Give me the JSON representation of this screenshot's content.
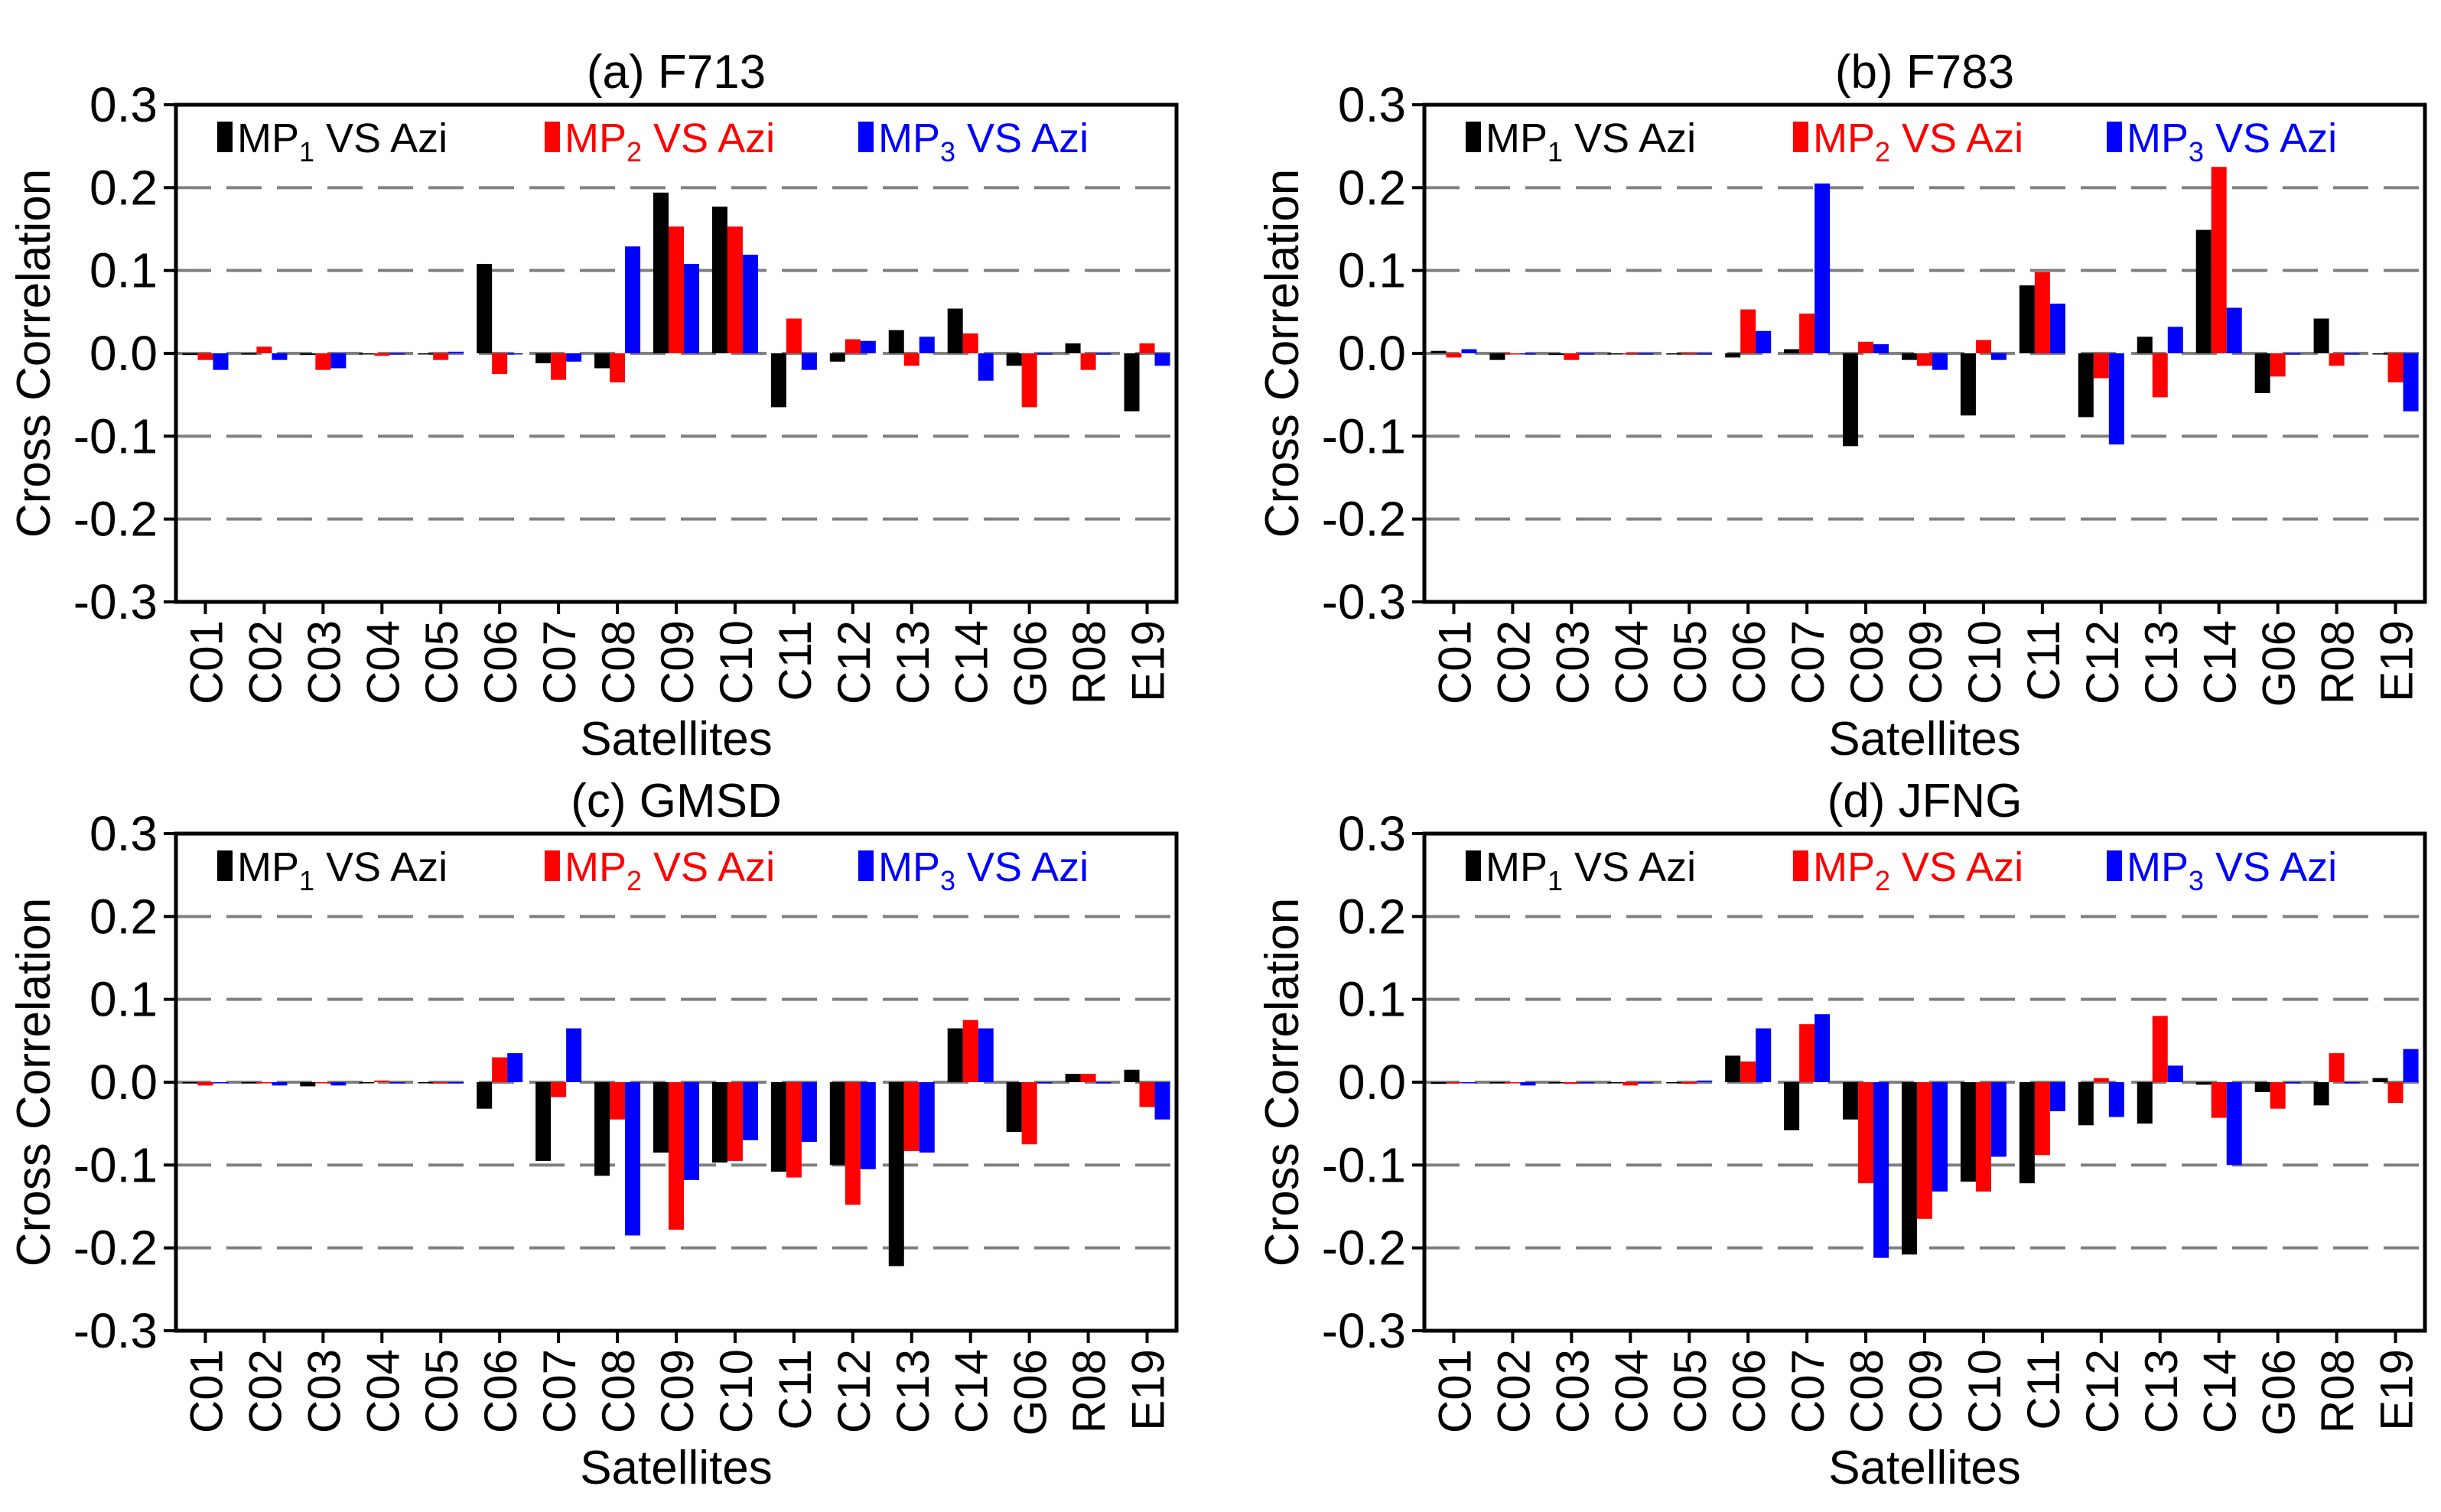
{
  "legend_suffix": "VS Azi",
  "legend_names": [
    "MP",
    "MP",
    "MP"
  ],
  "legend_subscripts": [
    "1",
    "2",
    "3"
  ],
  "colors": {
    "mp1": "#000000",
    "mp2": "#ff0000",
    "mp3": "#0000ff",
    "grid": "#808080"
  },
  "chart_data": [
    {
      "type": "bar",
      "title": "(a) F713",
      "xlabel": "Satellites",
      "ylabel": "Cross Correlation",
      "ylim": [
        -0.3,
        0.3
      ],
      "yticks": [
        "-0.3",
        "-0.2",
        "-0.1",
        "0.0",
        "0.1",
        "0.2",
        "0.3"
      ],
      "grid": "horizontal dashed",
      "legend": "top",
      "categories": [
        "C01",
        "C02",
        "C03",
        "C04",
        "C05",
        "C06",
        "C07",
        "C08",
        "C09",
        "C10",
        "C11",
        "C12",
        "C13",
        "C14",
        "G06",
        "R08",
        "E19"
      ],
      "series": [
        {
          "name": "MP1 VS Azi",
          "values": [
            -0.002,
            0.0,
            -0.002,
            0.0,
            0.0,
            0.108,
            -0.012,
            -0.018,
            0.194,
            0.177,
            -0.065,
            -0.01,
            0.028,
            0.054,
            -0.015,
            0.012,
            -0.07
          ]
        },
        {
          "name": "MP2 VS Azi",
          "values": [
            -0.008,
            0.008,
            -0.02,
            -0.003,
            -0.008,
            -0.025,
            -0.032,
            -0.035,
            0.153,
            0.153,
            0.042,
            0.017,
            -0.015,
            0.024,
            -0.065,
            -0.02,
            0.012
          ]
        },
        {
          "name": "MP3 VS Azi",
          "values": [
            -0.02,
            -0.008,
            -0.018,
            0.0,
            0.002,
            0.0,
            -0.01,
            0.129,
            0.108,
            0.119,
            -0.02,
            0.015,
            0.02,
            -0.033,
            0.0,
            0.0,
            -0.015
          ]
        }
      ]
    },
    {
      "type": "bar",
      "title": "(b) F783",
      "xlabel": "Satellites",
      "ylabel": "Cross Correlation",
      "ylim": [
        -0.3,
        0.3
      ],
      "yticks": [
        "-0.3",
        "-0.2",
        "-0.1",
        "0.0",
        "0.1",
        "0.2",
        "0.3"
      ],
      "grid": "horizontal dashed",
      "legend": "top",
      "categories": [
        "C01",
        "C02",
        "C03",
        "C04",
        "C05",
        "C06",
        "C07",
        "C08",
        "C09",
        "C10",
        "C11",
        "C12",
        "C13",
        "C14",
        "G06",
        "R08",
        "E19"
      ],
      "series": [
        {
          "name": "MP1 VS Azi",
          "values": [
            0.003,
            -0.008,
            -0.002,
            0.0,
            0.0,
            -0.005,
            0.005,
            -0.112,
            -0.008,
            -0.075,
            0.082,
            -0.077,
            0.02,
            0.149,
            -0.048,
            0.042,
            0.0
          ]
        },
        {
          "name": "MP2 VS Azi",
          "values": [
            -0.005,
            0.0,
            -0.008,
            0.0,
            0.0,
            0.053,
            0.048,
            0.014,
            -0.015,
            0.016,
            0.098,
            -0.03,
            -0.053,
            0.225,
            -0.028,
            -0.015,
            -0.035
          ]
        },
        {
          "name": "MP3 VS Azi",
          "values": [
            0.005,
            0.0,
            0.0,
            0.0,
            0.0,
            0.027,
            0.205,
            0.011,
            -0.02,
            -0.008,
            0.06,
            -0.11,
            0.032,
            0.055,
            0.0,
            0.0,
            -0.07
          ]
        }
      ]
    },
    {
      "type": "bar",
      "title": "(c) GMSD",
      "xlabel": "Satellites",
      "ylabel": "Cross Correlation",
      "ylim": [
        -0.3,
        0.3
      ],
      "yticks": [
        "-0.3",
        "-0.2",
        "-0.1",
        "0.0",
        "0.1",
        "0.2",
        "0.3"
      ],
      "grid": "horizontal dashed",
      "legend": "top",
      "categories": [
        "C01",
        "C02",
        "C03",
        "C04",
        "C05",
        "C06",
        "C07",
        "C08",
        "C09",
        "C10",
        "C11",
        "C12",
        "C13",
        "C14",
        "G06",
        "R08",
        "E19"
      ],
      "series": [
        {
          "name": "MP1 VS Azi",
          "values": [
            0.0,
            0.0,
            -0.005,
            0.0,
            0.0,
            -0.032,
            -0.095,
            -0.113,
            -0.085,
            -0.097,
            -0.108,
            -0.1,
            -0.222,
            0.065,
            -0.06,
            0.01,
            0.015
          ]
        },
        {
          "name": "MP2 VS Azi",
          "values": [
            -0.004,
            0.0,
            0.0,
            0.002,
            0.0,
            0.03,
            -0.018,
            -0.045,
            -0.178,
            -0.095,
            -0.115,
            -0.148,
            -0.083,
            0.075,
            -0.075,
            0.01,
            -0.03
          ]
        },
        {
          "name": "MP3 VS Azi",
          "values": [
            0.0,
            -0.004,
            -0.004,
            0.0,
            0.0,
            0.035,
            0.065,
            -0.185,
            -0.118,
            -0.07,
            -0.072,
            -0.105,
            -0.085,
            0.065,
            0.0,
            0.0,
            -0.045
          ]
        }
      ]
    },
    {
      "type": "bar",
      "title": "(d) JFNG",
      "xlabel": "Satellites",
      "ylabel": "Cross Correlation",
      "ylim": [
        -0.3,
        0.3
      ],
      "yticks": [
        "-0.3",
        "-0.2",
        "-0.1",
        "0.0",
        "0.1",
        "0.2",
        "0.3"
      ],
      "grid": "horizontal dashed",
      "legend": "top",
      "categories": [
        "C01",
        "C02",
        "C03",
        "C04",
        "C05",
        "C06",
        "C07",
        "C08",
        "C09",
        "C10",
        "C11",
        "C12",
        "C13",
        "C14",
        "G06",
        "R08",
        "E19"
      ],
      "series": [
        {
          "name": "MP1 VS Azi",
          "values": [
            -0.002,
            0.0,
            0.0,
            0.0,
            0.0,
            0.032,
            -0.058,
            -0.045,
            -0.208,
            -0.12,
            -0.122,
            -0.052,
            -0.05,
            -0.003,
            -0.012,
            -0.028,
            0.005
          ]
        },
        {
          "name": "MP2 VS Azi",
          "values": [
            0.0,
            0.0,
            -0.002,
            -0.004,
            -0.002,
            0.025,
            0.07,
            -0.122,
            -0.165,
            -0.132,
            -0.088,
            0.005,
            0.08,
            -0.043,
            -0.032,
            0.035,
            -0.025
          ]
        },
        {
          "name": "MP3 VS Azi",
          "values": [
            0.0,
            -0.004,
            0.0,
            0.0,
            0.002,
            0.065,
            0.082,
            -0.212,
            -0.132,
            -0.09,
            -0.035,
            -0.042,
            0.02,
            -0.1,
            0.0,
            0.0,
            0.04
          ]
        }
      ]
    }
  ]
}
